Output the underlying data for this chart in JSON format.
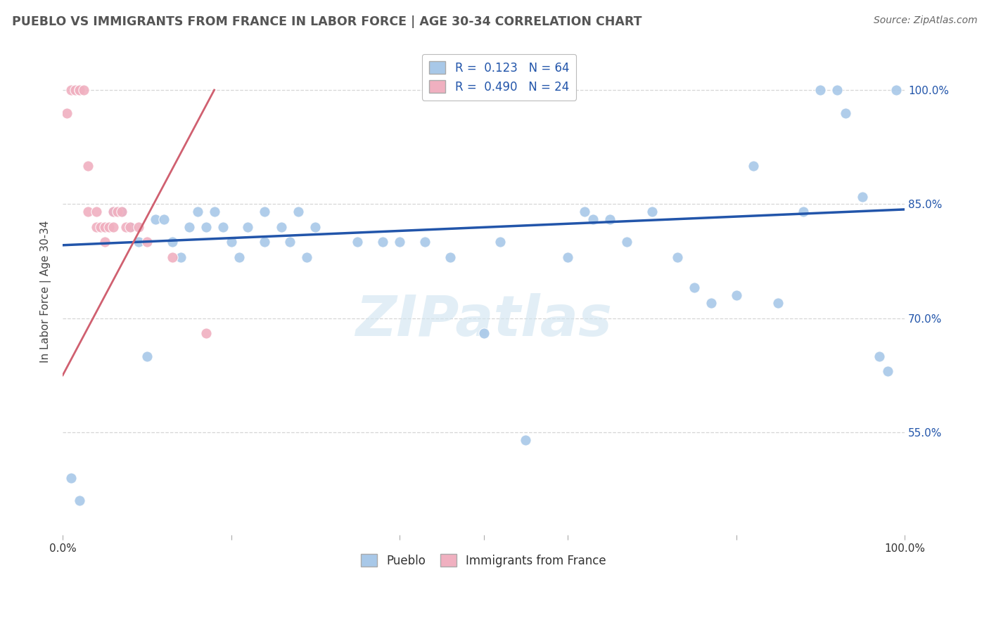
{
  "title": "PUEBLO VS IMMIGRANTS FROM FRANCE IN LABOR FORCE | AGE 30-34 CORRELATION CHART",
  "source": "Source: ZipAtlas.com",
  "ylabel": "In Labor Force | Age 30-34",
  "x_min": 0.0,
  "x_max": 1.0,
  "y_min": 0.415,
  "y_max": 1.055,
  "y_tick_labels_right": [
    "55.0%",
    "70.0%",
    "85.0%",
    "100.0%"
  ],
  "y_tick_values_right": [
    0.55,
    0.7,
    0.85,
    1.0
  ],
  "pueblo_color": "#a8c8e8",
  "france_color": "#f0b0c0",
  "pueblo_line_color": "#2255aa",
  "france_line_color": "#d06070",
  "background_color": "#ffffff",
  "grid_color": "#cccccc",
  "watermark_text": "ZIPatlas",
  "pueblo_scatter_x": [
    0.01,
    0.02,
    0.06,
    0.07,
    0.08,
    0.09,
    0.1,
    0.11,
    0.12,
    0.13,
    0.14,
    0.15,
    0.16,
    0.17,
    0.18,
    0.19,
    0.2,
    0.21,
    0.22,
    0.24,
    0.24,
    0.26,
    0.27,
    0.28,
    0.29,
    0.3,
    0.35,
    0.38,
    0.4,
    0.43,
    0.46,
    0.5,
    0.52,
    0.55,
    0.6,
    0.62,
    0.63,
    0.65,
    0.67,
    0.7,
    0.73,
    0.75,
    0.77,
    0.8,
    0.82,
    0.85,
    0.88,
    0.9,
    0.92,
    0.93,
    0.95,
    0.97,
    0.98,
    0.99
  ],
  "pueblo_scatter_y": [
    0.49,
    0.46,
    0.84,
    0.84,
    0.82,
    0.8,
    0.65,
    0.83,
    0.83,
    0.8,
    0.78,
    0.82,
    0.84,
    0.82,
    0.84,
    0.82,
    0.8,
    0.78,
    0.82,
    0.8,
    0.84,
    0.82,
    0.8,
    0.84,
    0.78,
    0.82,
    0.8,
    0.8,
    0.8,
    0.8,
    0.78,
    0.68,
    0.8,
    0.54,
    0.78,
    0.84,
    0.83,
    0.83,
    0.8,
    0.84,
    0.78,
    0.74,
    0.72,
    0.73,
    0.9,
    0.72,
    0.84,
    1.0,
    1.0,
    0.97,
    0.86,
    0.65,
    0.63,
    1.0
  ],
  "france_scatter_x": [
    0.005,
    0.01,
    0.015,
    0.02,
    0.02,
    0.025,
    0.03,
    0.03,
    0.04,
    0.04,
    0.045,
    0.05,
    0.05,
    0.055,
    0.06,
    0.06,
    0.065,
    0.07,
    0.075,
    0.08,
    0.09,
    0.1,
    0.13,
    0.17
  ],
  "france_scatter_y": [
    0.97,
    1.0,
    1.0,
    1.0,
    1.0,
    1.0,
    0.9,
    0.84,
    0.84,
    0.82,
    0.82,
    0.82,
    0.8,
    0.82,
    0.84,
    0.82,
    0.84,
    0.84,
    0.82,
    0.82,
    0.82,
    0.8,
    0.78,
    0.68
  ],
  "pueblo_trend_x": [
    0.0,
    1.0
  ],
  "pueblo_trend_y": [
    0.796,
    0.843
  ],
  "france_trend_x": [
    0.0,
    0.18
  ],
  "france_trend_y": [
    0.625,
    1.0
  ]
}
